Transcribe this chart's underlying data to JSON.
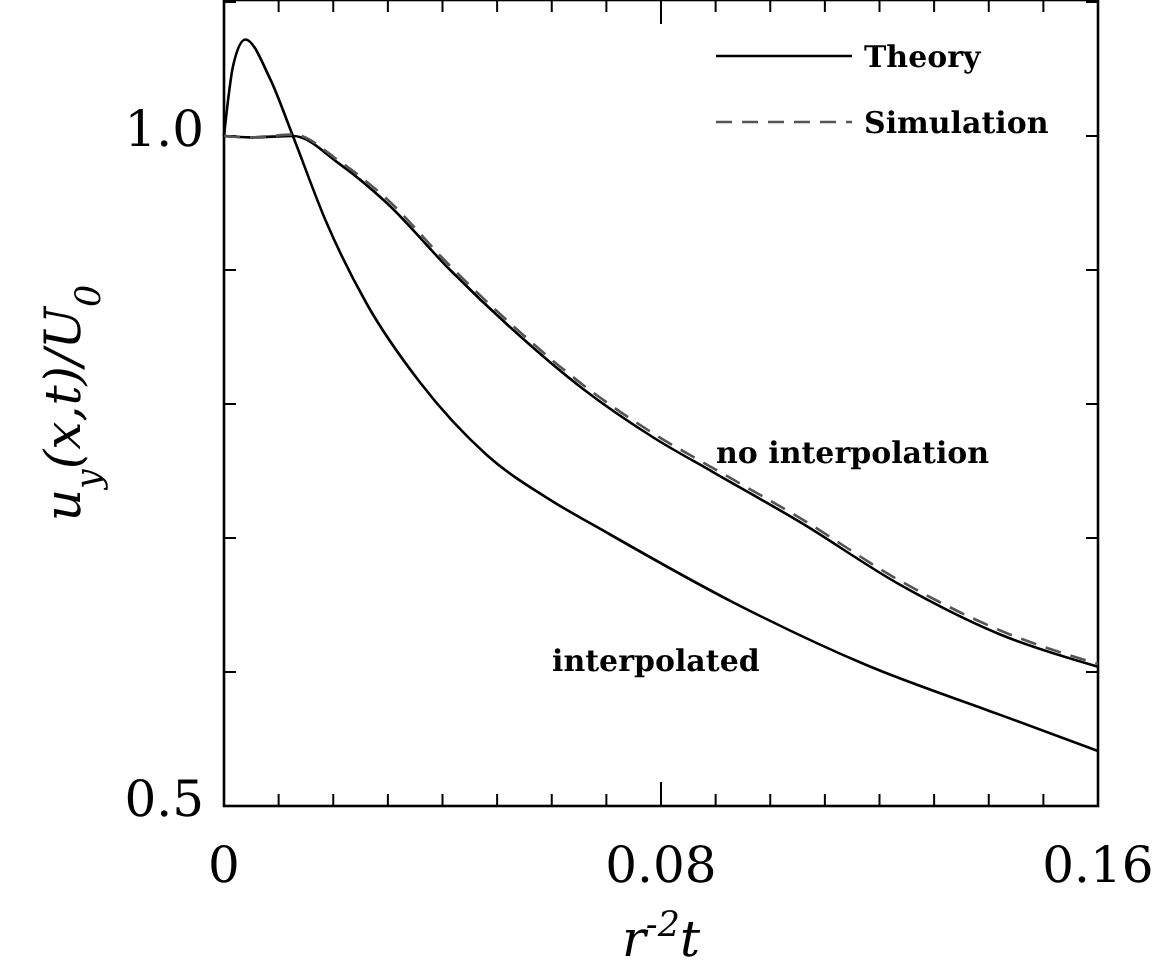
{
  "chart_data": {
    "type": "line",
    "xlabel": "r$^{-2}$t",
    "ylabel": "u$_{y}$(x,t)/U$_{0}$",
    "xlim": [
      0,
      0.16
    ],
    "ylim": [
      0.5,
      1.1
    ],
    "xticks": [
      0,
      {
        "value": 0.01,
        "label": null
      },
      {
        "value": 0.02,
        "label": null
      },
      {
        "value": 0.03,
        "label": null
      },
      {
        "value": 0.04,
        "label": null
      },
      {
        "value": 0.05,
        "label": null
      },
      {
        "value": 0.06,
        "label": null
      },
      {
        "value": 0.07,
        "label": null
      },
      0.08,
      {
        "value": 0.09,
        "label": null
      },
      {
        "value": 0.1,
        "label": null
      },
      {
        "value": 0.11,
        "label": null
      },
      {
        "value": 0.12,
        "label": null
      },
      {
        "value": 0.13,
        "label": null
      },
      {
        "value": 0.14,
        "label": null
      },
      {
        "value": 0.15,
        "label": null
      },
      0.16
    ],
    "yticks": [
      0.5,
      {
        "value": 0.6,
        "label": null
      },
      {
        "value": 0.7,
        "label": null
      },
      {
        "value": 0.8,
        "label": null
      },
      {
        "value": 0.9,
        "label": null
      },
      {
        "value": 1.0,
        "label": "1.0"
      },
      {
        "value": 1.1,
        "label": null
      }
    ],
    "legend": "top right",
    "grid": false,
    "marker": "none",
    "series": [
      {
        "name": "Theory",
        "color": "#000000",
        "line_style": "solid",
        "x": [
          0,
          0.0017,
          0.0039,
          0.0084,
          0.0127,
          0.0188,
          0.0261,
          0.0359,
          0.0481,
          0.0603,
          0.0688,
          0.0932,
          0.1177,
          0.1421,
          0.16
        ],
        "values": [
          1.0,
          1.053,
          1.072,
          1.043,
          0.999,
          0.935,
          0.875,
          0.816,
          0.762,
          0.727,
          0.707,
          0.652,
          0.605,
          0.568,
          0.541
        ]
      },
      {
        "color": "#000000",
        "line_style": "solid",
        "x": [
          0,
          0.005,
          0.0127,
          0.0212,
          0.0298,
          0.0414,
          0.053,
          0.0658,
          0.0786,
          0.0896,
          0.1054,
          0.1238,
          0.1421,
          0.16
        ],
        "values": [
          1.0,
          0.999,
          1.0,
          0.979,
          0.95,
          0.9,
          0.855,
          0.811,
          0.775,
          0.749,
          0.712,
          0.665,
          0.628,
          0.604
        ]
      },
      {
        "name": "Simulation",
        "color": "#555555",
        "line_style": "dashed",
        "x": [
          0,
          0.005,
          0.0127,
          0.0212,
          0.0298,
          0.0414,
          0.053,
          0.0658,
          0.0786,
          0.0896,
          0.1054,
          0.1238,
          0.1421,
          0.16
        ],
        "values": [
          1.0,
          0.999,
          1.001,
          0.981,
          0.953,
          0.903,
          0.858,
          0.814,
          0.778,
          0.752,
          0.715,
          0.668,
          0.631,
          0.606
        ]
      }
    ],
    "annotations": [
      "no interpolation",
      "interpolated"
    ]
  }
}
